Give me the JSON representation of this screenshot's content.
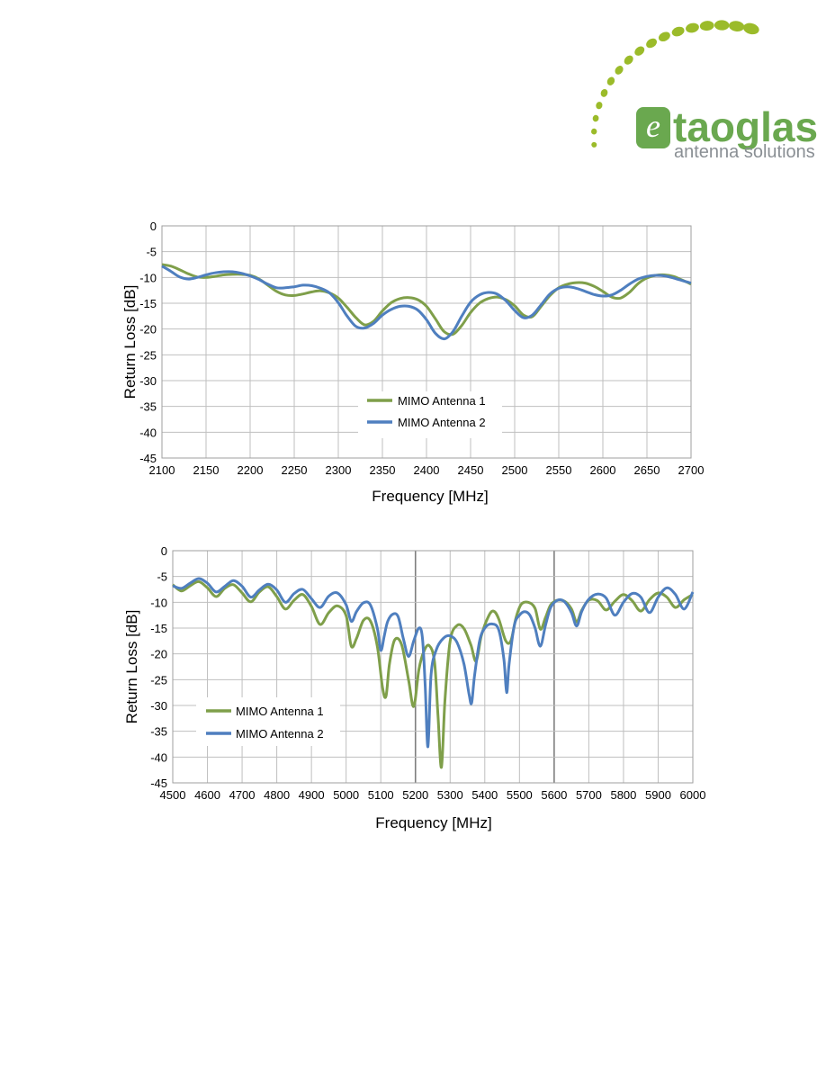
{
  "logo": {
    "wordmark": "taoglas",
    "tagline": "antenna solutions",
    "color_green": "#6aa84f",
    "color_grey": "#8a8f94",
    "dots_color": "#9bbb2a"
  },
  "colors": {
    "series1": "#7f9f4a",
    "series2": "#4f7fbf",
    "grid": "#bfbfbf",
    "grid_major": "#7f7f7f",
    "frame": "#9f9f9f"
  },
  "chart_data": [
    {
      "type": "line",
      "xlabel": "Frequency [MHz]",
      "ylabel": "Return Loss [dB]",
      "xlim": [
        2100,
        2700
      ],
      "ylim": [
        -45,
        0
      ],
      "xticks": [
        "2100",
        "2150",
        "2200",
        "2250",
        "2300",
        "2350",
        "2400",
        "2450",
        "2500",
        "2550",
        "2600",
        "2650",
        "2700"
      ],
      "yticks": [
        "0",
        "-5",
        "-10",
        "-15",
        "-20",
        "-25",
        "-30",
        "-35",
        "-40",
        "-45"
      ],
      "grid": true,
      "legend_placement": "lower-center",
      "series": [
        {
          "name": "MIMO Antenna 1",
          "x": [
            2100,
            2110,
            2120,
            2130,
            2140,
            2150,
            2160,
            2170,
            2180,
            2190,
            2200,
            2210,
            2220,
            2230,
            2240,
            2250,
            2260,
            2270,
            2280,
            2290,
            2300,
            2310,
            2320,
            2330,
            2340,
            2350,
            2360,
            2370,
            2380,
            2390,
            2400,
            2410,
            2420,
            2430,
            2440,
            2450,
            2460,
            2470,
            2480,
            2490,
            2500,
            2510,
            2520,
            2530,
            2540,
            2550,
            2560,
            2570,
            2580,
            2590,
            2600,
            2610,
            2620,
            2630,
            2640,
            2650,
            2660,
            2670,
            2680,
            2690,
            2700
          ],
          "y": [
            -7.5,
            -7.8,
            -8.5,
            -9.3,
            -9.9,
            -10.0,
            -9.8,
            -9.5,
            -9.4,
            -9.4,
            -9.6,
            -10.3,
            -11.5,
            -12.7,
            -13.4,
            -13.5,
            -13.2,
            -12.8,
            -12.6,
            -13.0,
            -14.0,
            -15.8,
            -17.8,
            -19.2,
            -18.5,
            -16.5,
            -14.9,
            -14.1,
            -13.9,
            -14.3,
            -15.6,
            -18.0,
            -20.5,
            -21.0,
            -19.3,
            -16.8,
            -15.0,
            -14.1,
            -13.8,
            -14.3,
            -15.5,
            -17.3,
            -17.6,
            -15.6,
            -13.5,
            -12.0,
            -11.3,
            -11.0,
            -11.1,
            -11.7,
            -12.7,
            -13.8,
            -14.0,
            -12.9,
            -11.2,
            -10.1,
            -9.6,
            -9.5,
            -9.8,
            -10.5,
            -11.3
          ]
        },
        {
          "name": "MIMO Antenna 2",
          "x": [
            2100,
            2110,
            2120,
            2130,
            2140,
            2150,
            2160,
            2170,
            2180,
            2190,
            2200,
            2210,
            2220,
            2230,
            2240,
            2250,
            2260,
            2270,
            2280,
            2290,
            2300,
            2310,
            2320,
            2330,
            2340,
            2350,
            2360,
            2370,
            2380,
            2390,
            2400,
            2410,
            2420,
            2430,
            2440,
            2450,
            2460,
            2470,
            2480,
            2490,
            2500,
            2510,
            2520,
            2530,
            2540,
            2550,
            2560,
            2570,
            2580,
            2590,
            2600,
            2610,
            2620,
            2630,
            2640,
            2650,
            2660,
            2670,
            2680,
            2690,
            2700
          ],
          "y": [
            -7.8,
            -8.8,
            -9.9,
            -10.3,
            -10.0,
            -9.5,
            -9.1,
            -8.9,
            -8.9,
            -9.2,
            -9.7,
            -10.4,
            -11.3,
            -12.0,
            -12.0,
            -11.8,
            -11.5,
            -11.6,
            -12.1,
            -13.0,
            -14.9,
            -17.5,
            -19.5,
            -19.8,
            -18.9,
            -17.3,
            -16.2,
            -15.6,
            -15.6,
            -16.3,
            -18.2,
            -20.8,
            -21.9,
            -20.5,
            -17.5,
            -14.8,
            -13.4,
            -12.9,
            -13.2,
            -14.5,
            -16.4,
            -17.8,
            -17.3,
            -15.3,
            -13.2,
            -12.1,
            -11.8,
            -12.1,
            -12.7,
            -13.3,
            -13.6,
            -13.4,
            -12.5,
            -11.3,
            -10.3,
            -9.8,
            -9.6,
            -9.7,
            -10.1,
            -10.6,
            -11.1
          ]
        }
      ]
    },
    {
      "type": "line",
      "xlabel": "Frequency [MHz]",
      "ylabel": "Return Loss [dB]",
      "xlim": [
        4500,
        6000
      ],
      "ylim": [
        -45,
        0
      ],
      "xticks": [
        "4500",
        "4600",
        "4700",
        "4800",
        "4900",
        "5000",
        "5100",
        "5200",
        "5300",
        "5400",
        "5500",
        "5600",
        "5700",
        "5800",
        "5900",
        "6000"
      ],
      "yticks": [
        "0",
        "-5",
        "-10",
        "-15",
        "-20",
        "-25",
        "-30",
        "-35",
        "-40",
        "-45"
      ],
      "grid": true,
      "major_x_grid": [
        5200,
        5600
      ],
      "legend_placement": "lower-left",
      "series": [
        {
          "name": "MIMO Antenna 1",
          "x": [
            4500,
            4525,
            4550,
            4575,
            4600,
            4625,
            4650,
            4675,
            4700,
            4725,
            4750,
            4775,
            4800,
            4825,
            4850,
            4875,
            4900,
            4925,
            4950,
            4975,
            5000,
            5015,
            5030,
            5050,
            5070,
            5090,
            5105,
            5115,
            5125,
            5140,
            5160,
            5180,
            5195,
            5210,
            5225,
            5240,
            5255,
            5265,
            5275,
            5285,
            5300,
            5320,
            5340,
            5360,
            5375,
            5390,
            5410,
            5425,
            5440,
            5460,
            5475,
            5490,
            5505,
            5525,
            5545,
            5560,
            5575,
            5590,
            5610,
            5630,
            5650,
            5665,
            5680,
            5700,
            5725,
            5750,
            5775,
            5800,
            5825,
            5850,
            5875,
            5900,
            5925,
            5950,
            5975,
            6000
          ],
          "y": [
            -6.6,
            -7.8,
            -6.8,
            -6.0,
            -7.2,
            -8.9,
            -7.3,
            -6.6,
            -8.2,
            -9.9,
            -8.0,
            -7.0,
            -8.9,
            -11.3,
            -9.6,
            -8.5,
            -10.8,
            -14.3,
            -12.0,
            -10.7,
            -12.6,
            -18.5,
            -17.0,
            -13.5,
            -13.6,
            -18.5,
            -26.5,
            -28.2,
            -22.0,
            -17.3,
            -18.2,
            -25.0,
            -30.2,
            -23.0,
            -19.4,
            -18.4,
            -21.5,
            -32.0,
            -42.0,
            -29.0,
            -17.5,
            -14.5,
            -15.1,
            -18.3,
            -21.4,
            -16.5,
            -12.8,
            -11.7,
            -13.2,
            -17.4,
            -17.5,
            -13.0,
            -10.4,
            -10.0,
            -11.2,
            -15.2,
            -13.0,
            -10.5,
            -9.6,
            -9.8,
            -11.3,
            -13.8,
            -11.5,
            -9.6,
            -9.7,
            -11.5,
            -9.8,
            -8.5,
            -9.7,
            -11.7,
            -9.5,
            -8.2,
            -9.0,
            -11.0,
            -9.5,
            -8.5
          ]
        },
        {
          "name": "MIMO Antenna 2",
          "x": [
            4500,
            4525,
            4550,
            4575,
            4600,
            4625,
            4650,
            4675,
            4700,
            4725,
            4750,
            4775,
            4800,
            4825,
            4850,
            4875,
            4900,
            4925,
            4950,
            4975,
            5000,
            5015,
            5030,
            5050,
            5070,
            5090,
            5100,
            5110,
            5120,
            5135,
            5150,
            5165,
            5180,
            5195,
            5210,
            5220,
            5228,
            5236,
            5245,
            5260,
            5280,
            5300,
            5320,
            5340,
            5355,
            5362,
            5370,
            5385,
            5400,
            5420,
            5440,
            5455,
            5463,
            5470,
            5485,
            5500,
            5515,
            5530,
            5545,
            5560,
            5575,
            5590,
            5610,
            5630,
            5650,
            5665,
            5680,
            5700,
            5725,
            5750,
            5775,
            5800,
            5825,
            5850,
            5875,
            5900,
            5925,
            5950,
            5975,
            6000
          ],
          "y": [
            -6.8,
            -7.3,
            -6.3,
            -5.4,
            -6.3,
            -8.0,
            -6.9,
            -5.8,
            -6.9,
            -9.0,
            -7.6,
            -6.5,
            -7.6,
            -10.0,
            -8.3,
            -7.5,
            -9.3,
            -11.0,
            -8.8,
            -8.2,
            -10.5,
            -13.7,
            -11.8,
            -10.1,
            -10.5,
            -15.0,
            -19.3,
            -16.5,
            -13.7,
            -12.3,
            -12.8,
            -17.0,
            -20.5,
            -17.5,
            -15.0,
            -16.8,
            -26.0,
            -38.0,
            -24.0,
            -19.2,
            -17.0,
            -16.5,
            -17.8,
            -22.0,
            -28.0,
            -29.5,
            -24.5,
            -17.5,
            -15.0,
            -14.2,
            -15.3,
            -21.0,
            -27.5,
            -22.0,
            -14.5,
            -12.5,
            -11.8,
            -12.5,
            -15.0,
            -18.5,
            -14.5,
            -11.0,
            -9.6,
            -9.9,
            -12.0,
            -14.6,
            -11.7,
            -9.4,
            -8.4,
            -9.2,
            -12.5,
            -10.0,
            -8.3,
            -9.0,
            -12.0,
            -9.0,
            -7.2,
            -8.5,
            -11.3,
            -8.0
          ]
        }
      ]
    }
  ]
}
